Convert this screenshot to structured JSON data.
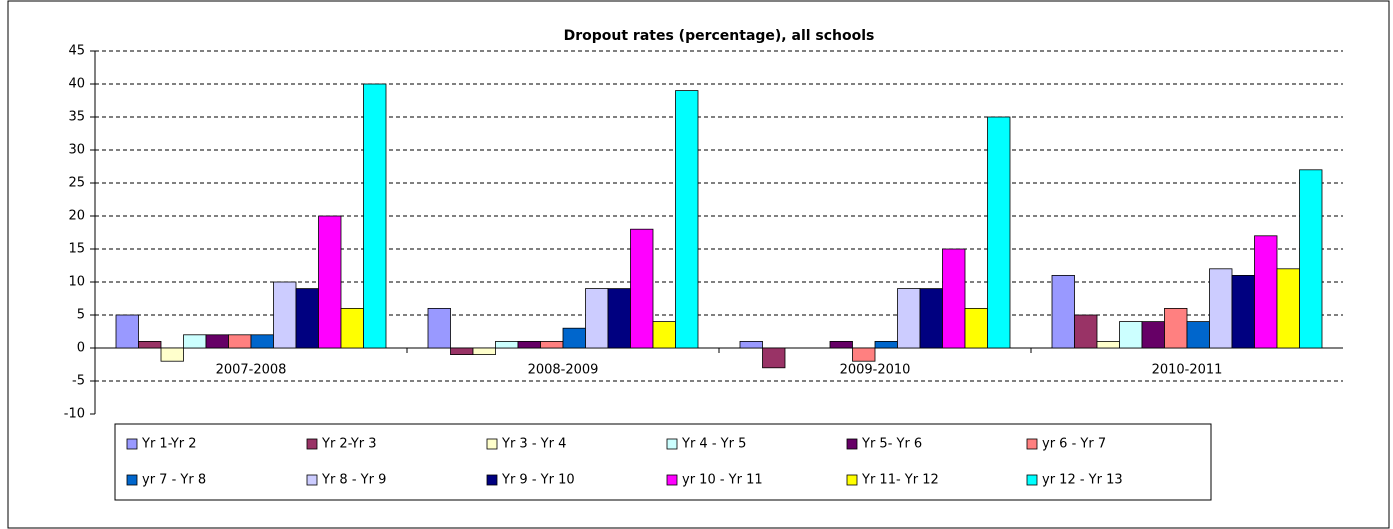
{
  "chart_data": {
    "type": "bar",
    "title": "Dropout rates (percentage), all schools",
    "categories": [
      "2007-2008",
      "2008-2009",
      "2009-2010",
      "2010-2011"
    ],
    "series": [
      {
        "name": "Yr 1-Yr 2",
        "color": "#9999ff",
        "values": [
          5,
          6,
          1,
          11
        ]
      },
      {
        "name": "Yr 2-Yr 3",
        "color": "#993366",
        "values": [
          1,
          -1,
          -3,
          5
        ]
      },
      {
        "name": "Yr 3 - Yr 4",
        "color": "#ffffcc",
        "values": [
          -2,
          -1,
          0,
          1
        ]
      },
      {
        "name": "Yr 4 - Yr 5",
        "color": "#ccffff",
        "values": [
          2,
          1,
          0,
          4
        ]
      },
      {
        "name": "Yr 5- Yr 6",
        "color": "#660066",
        "values": [
          2,
          1,
          1,
          4
        ]
      },
      {
        "name": "yr 6 - Yr 7",
        "color": "#ff8080",
        "values": [
          2,
          1,
          -2,
          6
        ]
      },
      {
        "name": "yr  7 - Yr 8",
        "color": "#0066cc",
        "values": [
          2,
          3,
          1,
          4
        ]
      },
      {
        "name": "Yr 8 - Yr 9",
        "color": "#ccccff",
        "values": [
          10,
          9,
          9,
          12
        ]
      },
      {
        "name": "Yr 9 - Yr 10",
        "color": "#000080",
        "values": [
          9,
          9,
          9,
          11
        ]
      },
      {
        "name": "yr 10 - Yr 11",
        "color": "#ff00ff",
        "values": [
          20,
          18,
          15,
          17
        ]
      },
      {
        "name": "Yr 11- Yr 12",
        "color": "#ffff00",
        "values": [
          6,
          4,
          6,
          12
        ]
      },
      {
        "name": "yr 12 - Yr 13",
        "color": "#00ffff",
        "values": [
          40,
          39,
          35,
          27
        ]
      }
    ],
    "ylim": [
      -10,
      45
    ],
    "yticks": [
      -10,
      -5,
      0,
      5,
      10,
      15,
      20,
      25,
      30,
      35,
      40,
      45
    ],
    "grid": true,
    "legend": "bottom"
  }
}
